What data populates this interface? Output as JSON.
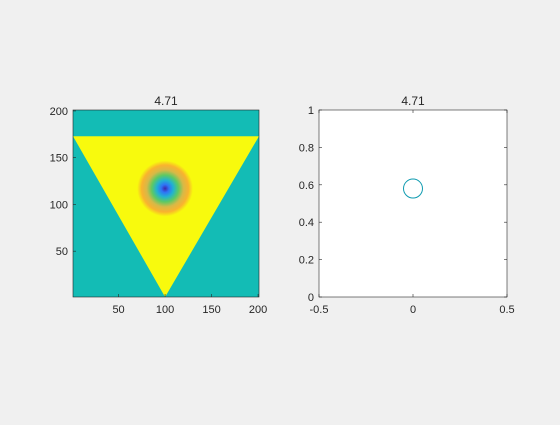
{
  "figure": {
    "background": "#f0f0f0"
  },
  "chart_data": [
    {
      "type": "heatmap",
      "title": "4.71",
      "xlabel": "",
      "ylabel": "",
      "xlim": [
        1,
        201
      ],
      "ylim": [
        1,
        201
      ],
      "x_ticks": [
        50,
        100,
        150,
        200
      ],
      "x_tick_labels": [
        "50",
        "100",
        "150",
        "200"
      ],
      "y_ticks": [
        50,
        100,
        150,
        200
      ],
      "y_tick_labels": [
        "50",
        "100",
        "150",
        "200"
      ],
      "regions": {
        "background_color": "#13bcb5",
        "triangle": {
          "vertices": [
            [
              1,
              173
            ],
            [
              201,
              173
            ],
            [
              100,
              1
            ]
          ],
          "fill_color": "#f8fa0d"
        },
        "gaussian_blob": {
          "center": [
            100,
            117
          ],
          "radius": 30,
          "colors": [
            "#3e26a8",
            "#2f74f6",
            "#22b2d0",
            "#5dc963",
            "#d7b947",
            "#f9b32e",
            "#f8fa0d"
          ]
        }
      },
      "grid": false
    },
    {
      "type": "scatter",
      "title": "4.71",
      "xlabel": "",
      "ylabel": "",
      "xlim": [
        -0.5,
        0.5
      ],
      "ylim": [
        0,
        1
      ],
      "x_ticks": [
        -0.5,
        0,
        0.5
      ],
      "x_tick_labels": [
        "-0.5",
        "0",
        "0.5"
      ],
      "y_ticks": [
        0,
        0.2,
        0.4,
        0.6,
        0.8,
        1
      ],
      "y_tick_labels": [
        "0",
        "0.2",
        "0.4",
        "0.6",
        "0.8",
        "1"
      ],
      "series": [
        {
          "x": [
            0
          ],
          "y": [
            0.58
          ],
          "marker": "circle-open",
          "color": "#0f9bb0"
        }
      ],
      "grid": false
    }
  ]
}
